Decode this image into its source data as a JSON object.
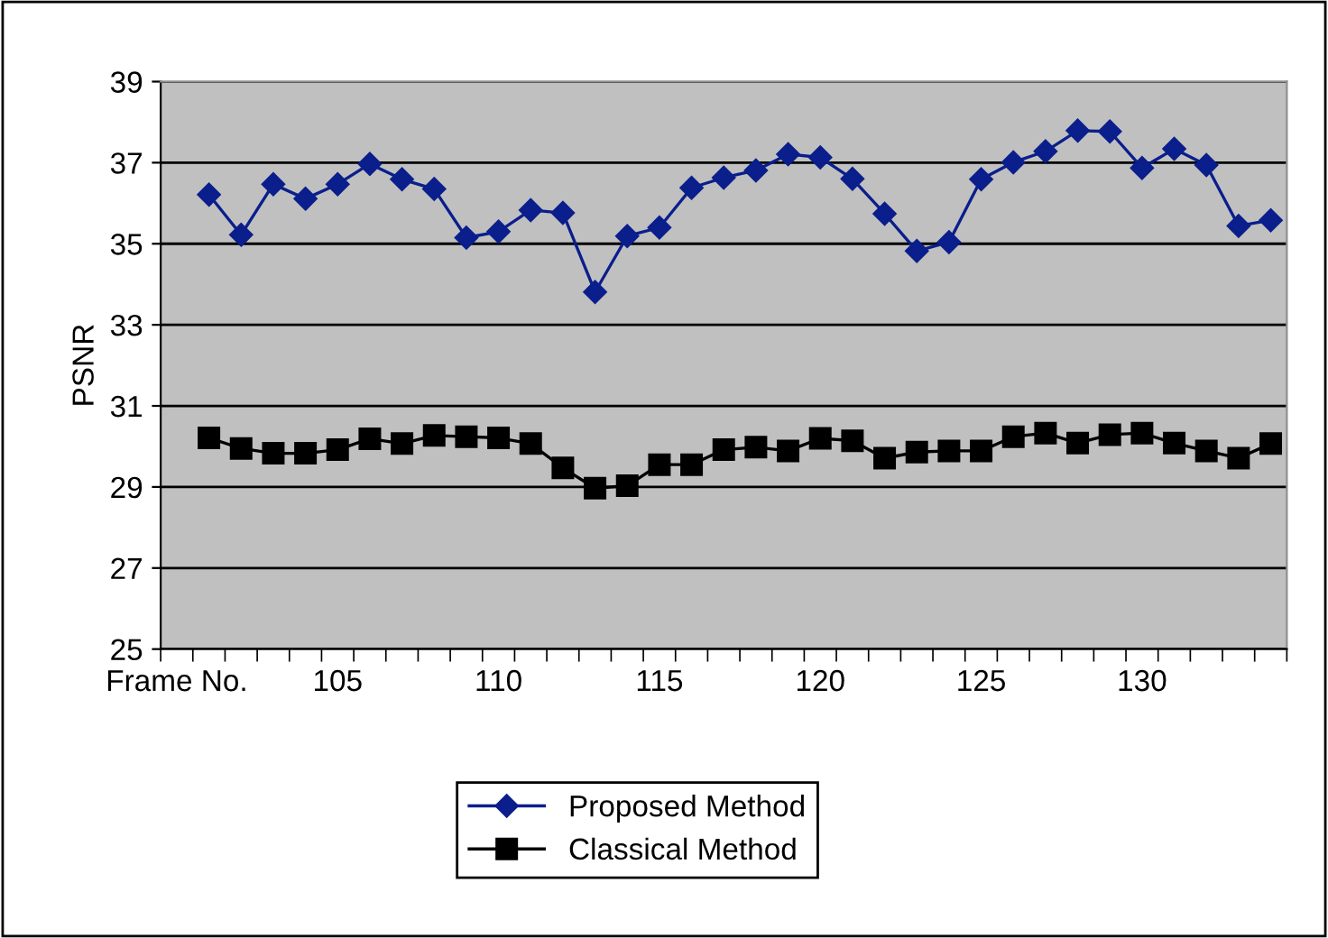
{
  "chart_data": {
    "type": "line",
    "ylabel": "PSNR",
    "categories": [
      "Frame No.",
      null,
      null,
      null,
      null,
      "105",
      null,
      null,
      null,
      null,
      "110",
      null,
      null,
      null,
      null,
      "115",
      null,
      null,
      null,
      null,
      "120",
      null,
      null,
      null,
      null,
      "125",
      null,
      null,
      null,
      null,
      "130",
      null,
      null,
      null,
      null
    ],
    "series": [
      {
        "name": "Proposed Method",
        "color": "#0a1e8c",
        "marker": "diamond",
        "values": [
          null,
          36.21,
          35.22,
          36.47,
          36.11,
          36.47,
          36.97,
          36.59,
          36.35,
          35.15,
          35.3,
          35.83,
          35.76,
          33.81,
          35.19,
          35.4,
          36.38,
          36.63,
          36.81,
          37.21,
          37.13,
          36.6,
          35.74,
          34.82,
          35.04,
          36.59,
          37.01,
          37.28,
          37.79,
          37.77,
          36.87,
          37.34,
          36.94,
          35.44,
          35.58
        ]
      },
      {
        "name": "Classical Method",
        "color": "#000000",
        "marker": "square",
        "values": [
          null,
          30.21,
          29.95,
          29.83,
          29.83,
          29.92,
          30.19,
          30.07,
          30.27,
          30.24,
          30.21,
          30.07,
          29.47,
          28.97,
          29.03,
          29.55,
          29.55,
          29.92,
          29.98,
          29.89,
          30.2,
          30.14,
          29.71,
          29.86,
          29.89,
          29.89,
          30.24,
          30.33,
          30.08,
          30.29,
          30.33,
          30.08,
          29.89,
          29.71,
          30.07
        ]
      }
    ],
    "ylim": [
      25,
      39
    ],
    "yticks": [
      25,
      27,
      29,
      31,
      33,
      35,
      37,
      39
    ],
    "grid": "y",
    "legend": "bottom"
  }
}
